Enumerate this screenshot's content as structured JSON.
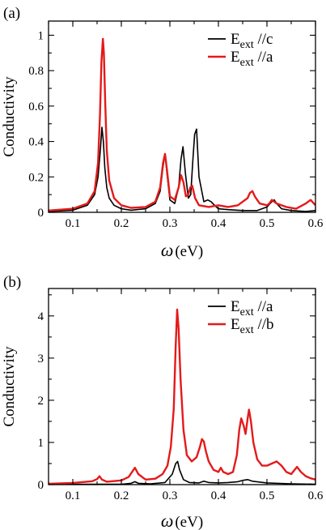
{
  "chart_data": [
    {
      "panel_label": "(a)",
      "type": "line",
      "xlabel_symbol": "ω",
      "xlabel_unit": "(eV)",
      "ylabel": "Conductivity",
      "xlim": [
        0.05,
        0.6
      ],
      "ylim": [
        0,
        1.08
      ],
      "xticks": [
        "0.1",
        "0.2",
        "0.3",
        "0.4",
        "0.5",
        "0.6"
      ],
      "yticks": [
        "0",
        "0.2",
        "0.4",
        "0.6",
        "0.8",
        "1"
      ],
      "legend_position": "top-right",
      "series": [
        {
          "name_main": "E",
          "name_sub": "ext",
          "name_suffix": " //c",
          "color": "#000000",
          "x": [
            0.05,
            0.1,
            0.13,
            0.145,
            0.152,
            0.157,
            0.16,
            0.163,
            0.166,
            0.17,
            0.175,
            0.185,
            0.2,
            0.22,
            0.25,
            0.27,
            0.28,
            0.286,
            0.29,
            0.294,
            0.3,
            0.31,
            0.318,
            0.323,
            0.327,
            0.332,
            0.338,
            0.343,
            0.347,
            0.351,
            0.355,
            0.36,
            0.37,
            0.378,
            0.385,
            0.392,
            0.4,
            0.42,
            0.45,
            0.48,
            0.5,
            0.51,
            0.515,
            0.52,
            0.53,
            0.55,
            0.58,
            0.6
          ],
          "y": [
            0.005,
            0.012,
            0.04,
            0.1,
            0.2,
            0.36,
            0.48,
            0.4,
            0.25,
            0.14,
            0.08,
            0.04,
            0.02,
            0.012,
            0.02,
            0.05,
            0.12,
            0.26,
            0.33,
            0.22,
            0.07,
            0.05,
            0.14,
            0.3,
            0.37,
            0.22,
            0.08,
            0.1,
            0.28,
            0.44,
            0.47,
            0.2,
            0.06,
            0.07,
            0.06,
            0.04,
            0.02,
            0.015,
            0.01,
            0.01,
            0.03,
            0.06,
            0.07,
            0.05,
            0.02,
            0.01,
            0.005,
            0.01
          ]
        },
        {
          "name_main": "E",
          "name_sub": "ext",
          "name_suffix": " //a",
          "color": "#e41a1a",
          "x": [
            0.05,
            0.1,
            0.13,
            0.145,
            0.152,
            0.156,
            0.159,
            0.162,
            0.164,
            0.167,
            0.17,
            0.175,
            0.185,
            0.2,
            0.22,
            0.25,
            0.27,
            0.28,
            0.286,
            0.29,
            0.294,
            0.3,
            0.31,
            0.318,
            0.323,
            0.328,
            0.333,
            0.338,
            0.342,
            0.346,
            0.352,
            0.36,
            0.38,
            0.4,
            0.42,
            0.44,
            0.46,
            0.465,
            0.47,
            0.475,
            0.485,
            0.5,
            0.505,
            0.51,
            0.52,
            0.54,
            0.56,
            0.58,
            0.59,
            0.6
          ],
          "y": [
            0.01,
            0.02,
            0.05,
            0.12,
            0.28,
            0.55,
            0.85,
            0.98,
            0.9,
            0.6,
            0.35,
            0.18,
            0.08,
            0.04,
            0.025,
            0.03,
            0.06,
            0.14,
            0.28,
            0.33,
            0.24,
            0.09,
            0.07,
            0.14,
            0.21,
            0.17,
            0.09,
            0.1,
            0.14,
            0.15,
            0.08,
            0.04,
            0.03,
            0.04,
            0.03,
            0.04,
            0.08,
            0.11,
            0.12,
            0.09,
            0.05,
            0.04,
            0.05,
            0.07,
            0.05,
            0.03,
            0.02,
            0.05,
            0.07,
            0.04
          ]
        }
      ]
    },
    {
      "panel_label": "(b)",
      "type": "line",
      "xlabel_symbol": "ω",
      "xlabel_unit": "(eV)",
      "ylabel": "Conductivity",
      "xlim": [
        0.05,
        0.6
      ],
      "ylim": [
        0,
        4.65
      ],
      "xticks": [
        "0.1",
        "0.2",
        "0.3",
        "0.4",
        "0.5",
        "0.6"
      ],
      "yticks": [
        "0",
        "1",
        "2",
        "3",
        "4"
      ],
      "legend_position": "top-right",
      "series": [
        {
          "name_main": "E",
          "name_sub": "ext",
          "name_suffix": " //a",
          "color": "#000000",
          "x": [
            0.05,
            0.15,
            0.2,
            0.22,
            0.228,
            0.235,
            0.26,
            0.29,
            0.305,
            0.312,
            0.316,
            0.32,
            0.328,
            0.34,
            0.36,
            0.37,
            0.38,
            0.4,
            0.42,
            0.44,
            0.45,
            0.46,
            0.47,
            0.5,
            0.55,
            0.6
          ],
          "y": [
            0.005,
            0.01,
            0.01,
            0.03,
            0.07,
            0.03,
            0.02,
            0.05,
            0.25,
            0.5,
            0.55,
            0.35,
            0.12,
            0.05,
            0.04,
            0.08,
            0.05,
            0.04,
            0.05,
            0.07,
            0.1,
            0.12,
            0.08,
            0.04,
            0.02,
            0.01
          ],
          "visible_points": "fine-structure approximated"
        },
        {
          "name_main": "E",
          "name_sub": "ext",
          "name_suffix": " //b",
          "color": "#e41a1a",
          "x": [
            0.05,
            0.1,
            0.14,
            0.15,
            0.155,
            0.16,
            0.17,
            0.2,
            0.215,
            0.222,
            0.228,
            0.235,
            0.25,
            0.27,
            0.285,
            0.295,
            0.302,
            0.308,
            0.312,
            0.315,
            0.318,
            0.322,
            0.328,
            0.335,
            0.345,
            0.355,
            0.362,
            0.366,
            0.37,
            0.374,
            0.38,
            0.39,
            0.4,
            0.405,
            0.41,
            0.42,
            0.43,
            0.438,
            0.443,
            0.447,
            0.452,
            0.456,
            0.46,
            0.463,
            0.467,
            0.472,
            0.48,
            0.49,
            0.5,
            0.51,
            0.52,
            0.53,
            0.54,
            0.55,
            0.557,
            0.562,
            0.57,
            0.58,
            0.59,
            0.6
          ],
          "y": [
            0.02,
            0.04,
            0.08,
            0.13,
            0.2,
            0.12,
            0.07,
            0.1,
            0.18,
            0.3,
            0.4,
            0.25,
            0.12,
            0.14,
            0.25,
            0.45,
            0.9,
            1.8,
            3.3,
            4.15,
            3.7,
            2.5,
            1.3,
            0.7,
            0.55,
            0.65,
            0.9,
            1.08,
            1.02,
            0.8,
            0.55,
            0.35,
            0.3,
            0.4,
            0.3,
            0.25,
            0.3,
            0.7,
            1.3,
            1.57,
            1.4,
            1.2,
            1.55,
            1.78,
            1.5,
            1.0,
            0.6,
            0.45,
            0.45,
            0.5,
            0.55,
            0.45,
            0.3,
            0.25,
            0.35,
            0.42,
            0.3,
            0.2,
            0.15,
            0.12
          ]
        }
      ]
    }
  ]
}
